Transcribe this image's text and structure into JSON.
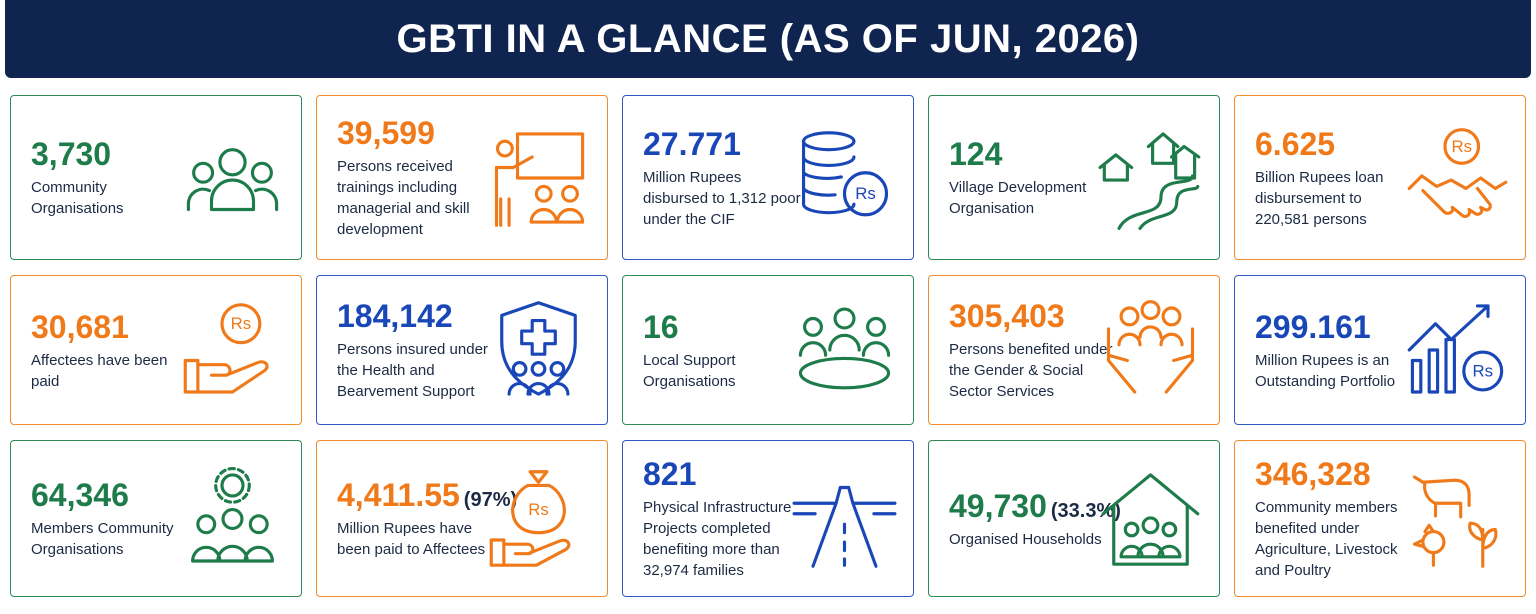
{
  "header": {
    "title": "GBTI IN A GLANCE (AS OF JUN, 2026)"
  },
  "currency_symbol": "Rs",
  "cards": [
    {
      "value": "3,730",
      "description": "Community Organisations"
    },
    {
      "value": "39,599",
      "description": "Persons received trainings including managerial and skill development"
    },
    {
      "value": "27.771",
      "description": "Million Rupees disbursed to 1,312 poor under the CIF"
    },
    {
      "value": "124",
      "description": "Village Development Organisation"
    },
    {
      "value": "6.625",
      "description": "Billion Rupees loan disbursement to 220,581 persons"
    },
    {
      "value": "30,681",
      "description": "Affectees have been paid"
    },
    {
      "value": "184,142",
      "description": "Persons insured under the Health and Bearvement Support"
    },
    {
      "value": "16",
      "description": "Local Support Organisations"
    },
    {
      "value": "305,403",
      "description": "Persons benefited under the Gender & Social Sector Services"
    },
    {
      "value": "299.161",
      "description": "Million Rupees is an Outstanding Portfolio"
    },
    {
      "value": "64,346",
      "description": "Members Community Organisations"
    },
    {
      "value": "4,411.55",
      "note": "(97%)",
      "description": "Million Rupees have been paid to Affectees"
    },
    {
      "value": "821",
      "description": "Physical Infrastructure Projects completed benefiting more than 32,974 families"
    },
    {
      "value": "49,730",
      "note": "(33.3%)",
      "description": "Organised Households"
    },
    {
      "value": "346,328",
      "description": "Community members benefited under Agriculture, Livestock and Poultry"
    }
  ]
}
